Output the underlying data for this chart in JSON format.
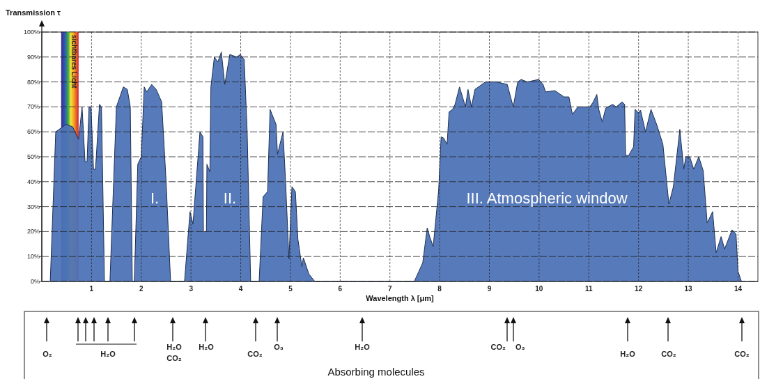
{
  "chart_data": {
    "type": "area",
    "ylabel": "Transmission τ",
    "xlabel": "Wavelength λ [μm]",
    "color": "#4e73b6",
    "xlim": [
      0,
      14.4
    ],
    "xticks": [
      1,
      2,
      3,
      4,
      5,
      6,
      7,
      8,
      9,
      10,
      11,
      12,
      13,
      14
    ],
    "ylim": [
      0,
      100
    ],
    "yticks": [
      {
        "value": 0,
        "label": "0%"
      },
      {
        "value": 10,
        "label": "10%"
      },
      {
        "value": 20,
        "label": "20%"
      },
      {
        "value": 30,
        "label": "30%"
      },
      {
        "value": 40,
        "label": "40%"
      },
      {
        "value": 50,
        "label": "50%"
      },
      {
        "value": 60,
        "label": "60%"
      },
      {
        "value": 70,
        "label": "70%"
      },
      {
        "value": 80,
        "label": "80%"
      },
      {
        "value": 90,
        "label": "90%"
      },
      {
        "value": 100,
        "label": "100%"
      }
    ],
    "grid": true,
    "bands": [
      {
        "axis": "x",
        "from": 0.39,
        "to": 0.74,
        "label": "sichtbares Licht"
      }
    ],
    "x": [
      0.17,
      0.28,
      0.49,
      0.62,
      0.74,
      0.81,
      0.87,
      0.91,
      0.95,
      0.99,
      1.04,
      1.08,
      1.16,
      1.2,
      1.26,
      1.37,
      1.5,
      1.64,
      1.72,
      1.78,
      1.82,
      1.86,
      1.93,
      2.0,
      2.06,
      2.11,
      2.21,
      2.3,
      2.41,
      2.5,
      2.59,
      2.87,
      2.98,
      3.04,
      3.18,
      3.24,
      3.25,
      3.31,
      3.32,
      3.38,
      3.4,
      3.47,
      3.54,
      3.61,
      3.68,
      3.78,
      3.92,
      3.99,
      4.07,
      4.13,
      4.2,
      4.37,
      4.45,
      4.54,
      4.59,
      4.71,
      4.74,
      4.85,
      4.9,
      4.97,
      5.03,
      5.1,
      5.15,
      5.23,
      5.26,
      5.37,
      5.49,
      7.49,
      7.66,
      7.75,
      7.8,
      7.87,
      7.98,
      8.03,
      8.08,
      8.15,
      8.19,
      8.26,
      8.31,
      8.4,
      8.52,
      8.57,
      8.64,
      8.71,
      8.92,
      9.15,
      9.36,
      9.48,
      9.57,
      9.64,
      9.76,
      9.99,
      10.08,
      10.13,
      10.32,
      10.5,
      10.6,
      10.67,
      10.78,
      11.02,
      11.09,
      11.16,
      11.2,
      11.27,
      11.34,
      11.48,
      11.55,
      11.67,
      11.72,
      11.74,
      11.8,
      11.9,
      11.93,
      12.0,
      12.04,
      12.14,
      12.25,
      12.37,
      12.49,
      12.61,
      12.7,
      12.83,
      12.91,
      12.95,
      13.03,
      13.11,
      13.21,
      13.3,
      13.38,
      13.49,
      13.56,
      13.66,
      13.73,
      13.88,
      13.96,
      14.0,
      14.07
    ],
    "values": [
      0,
      60,
      63,
      62,
      57,
      70,
      48,
      48,
      70,
      70,
      45,
      45,
      71,
      70,
      0,
      0,
      70,
      78,
      77,
      70,
      0,
      0,
      47,
      50,
      78,
      76,
      79,
      77,
      72,
      40,
      0,
      0,
      28,
      23,
      60,
      58,
      20,
      20,
      47,
      44,
      78,
      90,
      88,
      92,
      79,
      91,
      90,
      91,
      89,
      60,
      0,
      0,
      34,
      36,
      69,
      63,
      51,
      60,
      41,
      9,
      38,
      36,
      17,
      6,
      9.5,
      3,
      0,
      0,
      7.5,
      21.5,
      18,
      14,
      36.6,
      58,
      57.5,
      55,
      68,
      69,
      71,
      78,
      70,
      77,
      70,
      77,
      80,
      80,
      79,
      70,
      80,
      81,
      80,
      81,
      79,
      76,
      76.5,
      74,
      74,
      67,
      70,
      70,
      72,
      75,
      69,
      64,
      69.5,
      71,
      70,
      72,
      71,
      50.5,
      50.5,
      54,
      69,
      67.6,
      68.7,
      60,
      69,
      62.6,
      55,
      31,
      38,
      61,
      45,
      50,
      50,
      45,
      50,
      44.4,
      23.5,
      28,
      11.5,
      18,
      13,
      20.7,
      19,
      4,
      0
    ],
    "annotations": [
      "I.",
      "II.",
      "III. Atmospheric window",
      "O₂",
      "H₂O",
      "H₂O",
      "CO₂",
      "H₂O",
      "CO₂",
      "O₃",
      "H₂O",
      "CO₂",
      "O₃",
      "H₂O",
      "CO₂",
      "CO₂",
      "Absorbing molecules"
    ]
  }
}
